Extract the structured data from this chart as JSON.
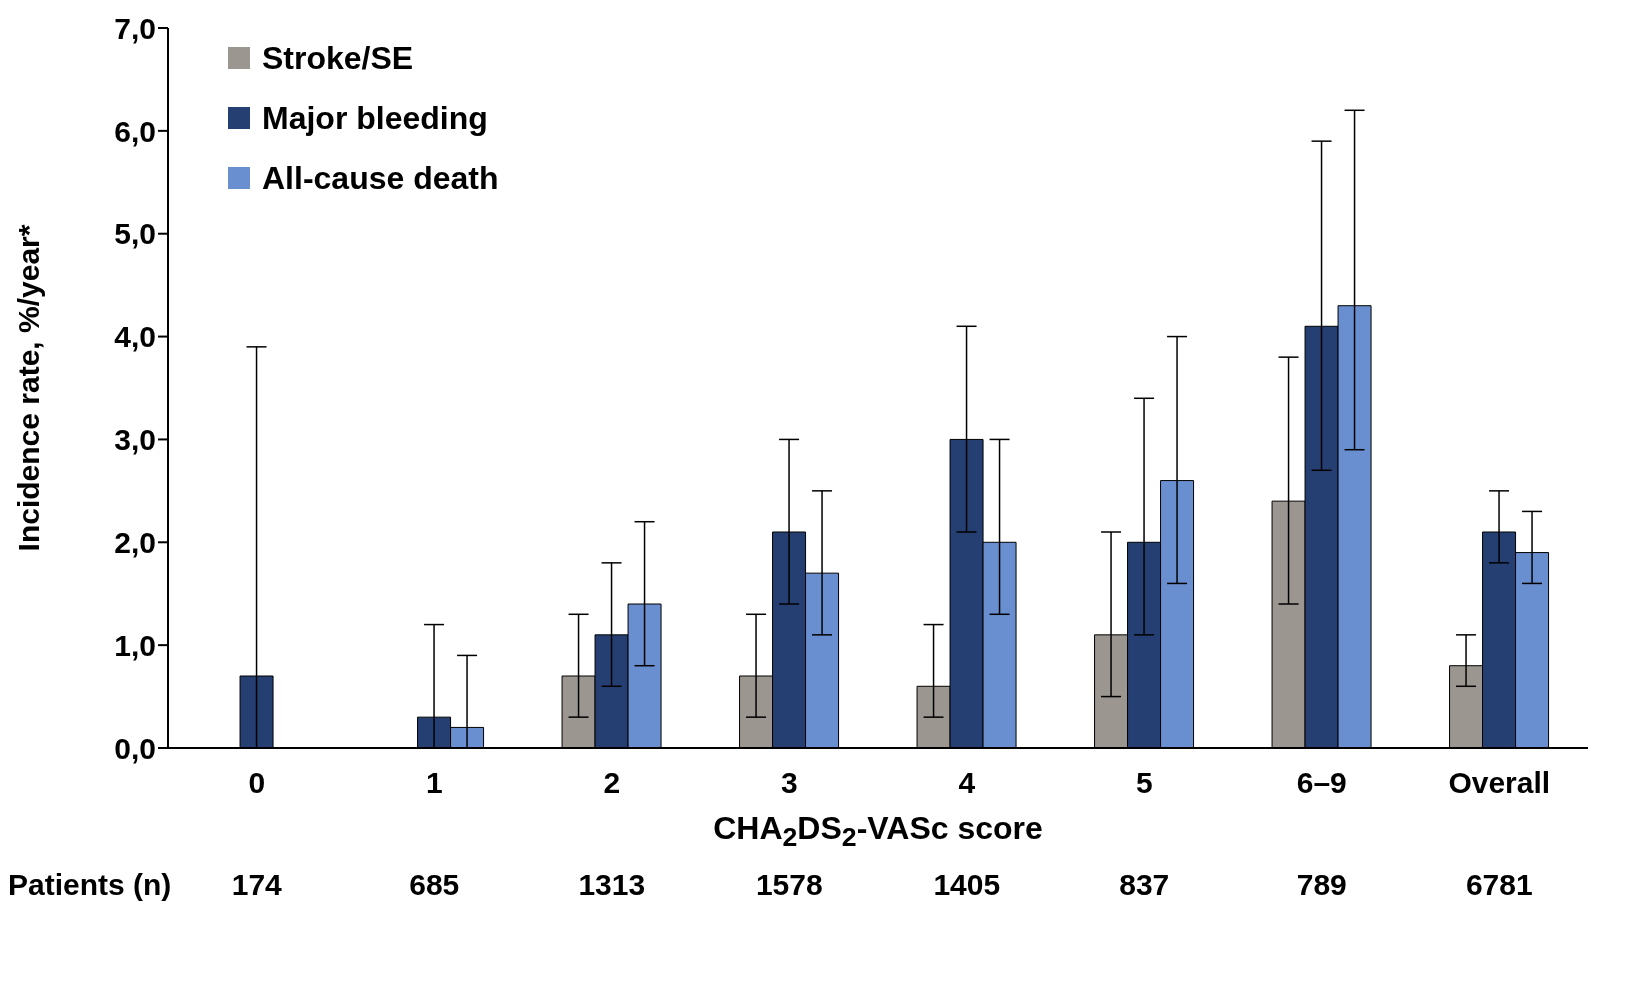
{
  "chart_data": {
    "type": "bar",
    "categories": [
      "0",
      "1",
      "2",
      "3",
      "4",
      "5",
      "6–9",
      "Overall"
    ],
    "xlabel": "CHA$_{2}$DS$_{2}$-VASc score",
    "ylabel": "Incidence rate, %/year*",
    "series": [
      {
        "name": "Stroke/SE",
        "color": "#9b9690",
        "values": [
          null,
          null,
          0.7,
          0.7,
          0.6,
          1.1,
          2.4,
          0.8
        ],
        "errors": [
          null,
          null,
          [
            0.3,
            1.3
          ],
          [
            0.3,
            1.3
          ],
          [
            0.3,
            1.2
          ],
          [
            0.5,
            2.1
          ],
          [
            1.4,
            3.8
          ],
          [
            0.6,
            1.1
          ]
        ]
      },
      {
        "name": "Major bleeding",
        "color": "#253f73",
        "values": [
          0.7,
          0.3,
          1.1,
          2.1,
          3.0,
          2.0,
          4.1,
          2.1
        ],
        "errors": [
          [
            0,
            3.9
          ],
          [
            0,
            1.2
          ],
          [
            0.6,
            1.8
          ],
          [
            1.4,
            3.0
          ],
          [
            2.1,
            4.1
          ],
          [
            1.1,
            3.4
          ],
          [
            2.7,
            5.9
          ],
          [
            1.8,
            2.5
          ]
        ]
      },
      {
        "name": "All-cause death",
        "color": "#6a8fd0",
        "values": [
          null,
          0.2,
          1.4,
          1.7,
          2.0,
          2.6,
          4.3,
          1.9
        ],
        "errors": [
          null,
          [
            0,
            0.9
          ],
          [
            0.8,
            2.2
          ],
          [
            1.1,
            2.5
          ],
          [
            1.3,
            3.0
          ],
          [
            1.6,
            4.0
          ],
          [
            2.9,
            6.2
          ],
          [
            1.6,
            2.3
          ]
        ]
      }
    ],
    "ylim": [
      0,
      7
    ],
    "yticks": [
      {
        "value": 0,
        "label": "0,0"
      },
      {
        "value": 1,
        "label": "1,0"
      },
      {
        "value": 2,
        "label": "2,0"
      },
      {
        "value": 3,
        "label": "3,0"
      },
      {
        "value": 4,
        "label": "4,0"
      },
      {
        "value": 5,
        "label": "5,0"
      },
      {
        "value": 6,
        "label": "6,0"
      },
      {
        "value": 7,
        "label": "7,0"
      }
    ],
    "annotations": [
      "Patients (n)",
      "174",
      "685",
      "1313",
      "1578",
      "1405",
      "837",
      "789",
      "6781"
    ],
    "legend": "top left",
    "grid": false
  }
}
